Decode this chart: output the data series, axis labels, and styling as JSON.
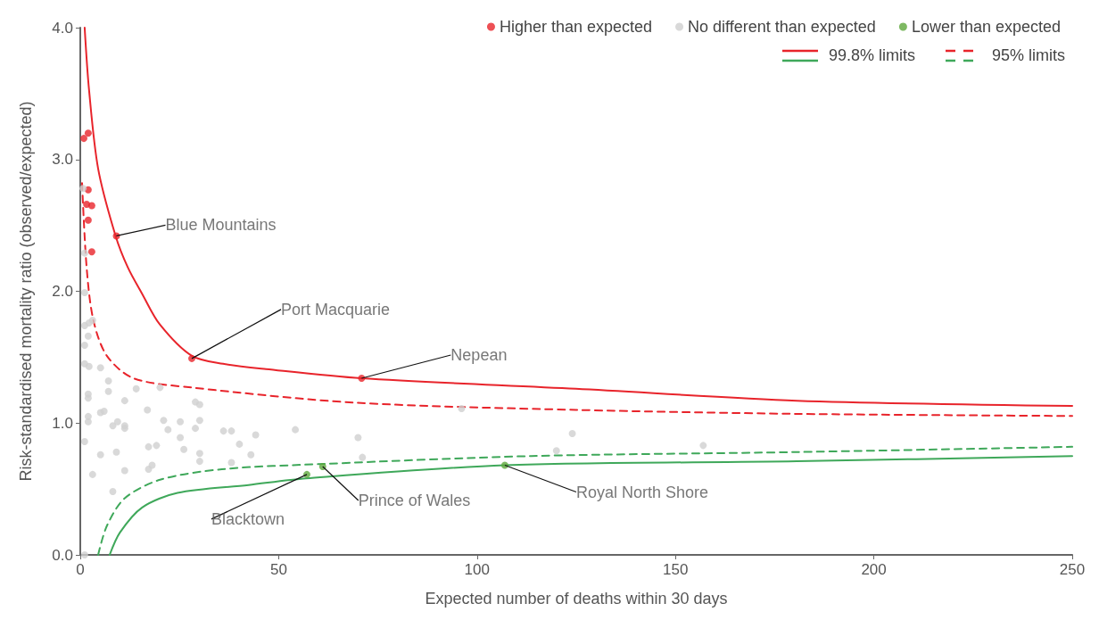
{
  "chart_data": {
    "type": "scatter",
    "xlabel": "Expected number of deaths within 30 days",
    "ylabel": "Risk-standardised mortality ratio (observed/expected)",
    "xlim": [
      0,
      250
    ],
    "xticks": [
      0,
      50,
      100,
      150,
      200,
      250
    ],
    "ylim": [
      0,
      4
    ],
    "yticks": [
      {
        "value": 0,
        "label": "0.0"
      },
      {
        "value": 1,
        "label": "1.0"
      },
      {
        "value": 2,
        "label": "2.0"
      },
      {
        "value": 3,
        "label": "3.0"
      },
      {
        "value": 4,
        "label": "4.0"
      }
    ],
    "grid": false,
    "legend": "top right",
    "marker": "circle",
    "series": [
      {
        "name": "Higher than expected",
        "color": "#e8242b",
        "x": [
          0.9,
          2.0,
          2.0,
          1.6,
          2.9,
          2.0,
          2.9,
          9.1,
          28.1,
          70.9
        ],
        "values": [
          3.16,
          3.2,
          2.77,
          2.66,
          2.65,
          2.54,
          2.3,
          2.42,
          1.49,
          1.34
        ]
      },
      {
        "name": "No different than expected",
        "color": "#d0d0d0",
        "x": [
          0.7,
          1.1,
          1.1,
          1.1,
          2.2,
          3.1,
          2.0,
          1.1,
          1.1,
          2.2,
          5.1,
          7.1,
          7.1,
          14.1,
          20.1,
          2.0,
          2.0,
          11.2,
          29.0,
          30.1,
          16.9,
          2.0,
          5.1,
          6.0,
          8.2,
          9.4,
          11.2,
          11.2,
          2.0,
          21.0,
          22.1,
          25.2,
          30.1,
          29.0,
          25.2,
          1.1,
          36.1,
          38.1,
          40.1,
          5.1,
          9.1,
          17.2,
          19.2,
          26.1,
          30.1,
          30.1,
          38.1,
          3.1,
          11.2,
          17.2,
          18.1,
          8.2,
          1.1,
          54.2,
          43.0,
          44.2,
          70.0,
          71.1,
          96.1,
          120,
          124,
          157
        ],
        "values": [
          2.78,
          2.29,
          1.99,
          1.74,
          1.76,
          1.78,
          1.66,
          1.59,
          1.45,
          1.43,
          1.42,
          1.32,
          1.24,
          1.26,
          1.27,
          1.22,
          1.19,
          1.17,
          1.16,
          1.14,
          1.1,
          1.05,
          1.08,
          1.09,
          0.98,
          1.01,
          0.98,
          0.96,
          1.01,
          1.02,
          0.95,
          1.01,
          1.02,
          0.96,
          0.89,
          0.86,
          0.94,
          0.94,
          0.84,
          0.76,
          0.78,
          0.82,
          0.83,
          0.8,
          0.77,
          0.71,
          0.7,
          0.61,
          0.64,
          0.65,
          0.68,
          0.48,
          0.0,
          0.95,
          0.76,
          0.91,
          0.89,
          0.74,
          1.11,
          0.79,
          0.92,
          0.83
        ]
      },
      {
        "name": "Lower than expected",
        "color": "#5ea83c",
        "x": [
          57.1,
          61.1,
          107
        ],
        "values": [
          0.61,
          0.67,
          0.68
        ]
      },
      {
        "name": "99.8% limits",
        "type": "line",
        "marker": "none",
        "line_style": "solid",
        "color": "#e8242b",
        "x": [
          1.1,
          2.2,
          4.5,
          8.9,
          12,
          15.6,
          20,
          28.1,
          36,
          46.8,
          70.9,
          124.9,
          180.6,
          250
        ],
        "values": [
          4.0,
          3.53,
          2.93,
          2.42,
          2.18,
          1.98,
          1.75,
          1.51,
          1.45,
          1.41,
          1.34,
          1.26,
          1.17,
          1.13
        ]
      },
      {
        "type": "line",
        "marker": "none",
        "line_style": "solid",
        "color": "#3fa85a",
        "x": [
          7.4,
          10,
          15.6,
          24.5,
          42.4,
          56.9,
          107,
          180.6,
          250
        ],
        "values": [
          0,
          0.17,
          0.36,
          0.47,
          0.53,
          0.58,
          0.68,
          0.71,
          0.75
        ]
      },
      {
        "name": "95% limits",
        "type": "line",
        "marker": "none",
        "line_style": "dashed",
        "color": "#e8242b",
        "x": [
          0.45,
          1.6,
          3.3,
          6.7,
          13.4,
          28.1,
          69.1,
          124.9,
          180.6,
          250
        ],
        "values": [
          2.82,
          2.18,
          1.78,
          1.51,
          1.34,
          1.27,
          1.155,
          1.1,
          1.07,
          1.054
        ]
      },
      {
        "type": "line",
        "marker": "none",
        "line_style": "dashed",
        "color": "#3fa85a",
        "x": [
          4.5,
          6.7,
          11.2,
          20.1,
          35.7,
          61.3,
          113.7,
          180.6,
          250
        ],
        "values": [
          0,
          0.22,
          0.43,
          0.57,
          0.65,
          0.69,
          0.75,
          0.78,
          0.82
        ]
      }
    ],
    "annotations": [
      {
        "text": "Blue Mountains",
        "x": 9.1,
        "y": 2.42
      },
      {
        "text": "Port Macquarie",
        "x": 28.1,
        "y": 1.49
      },
      {
        "text": "Nepean",
        "x": 70.9,
        "y": 1.34
      },
      {
        "text": "Blacktown",
        "x": 57.1,
        "y": 0.61
      },
      {
        "text": "Prince of Wales",
        "x": 61.1,
        "y": 0.67
      },
      {
        "text": "Royal North Shore",
        "x": 107,
        "y": 0.68
      }
    ]
  }
}
